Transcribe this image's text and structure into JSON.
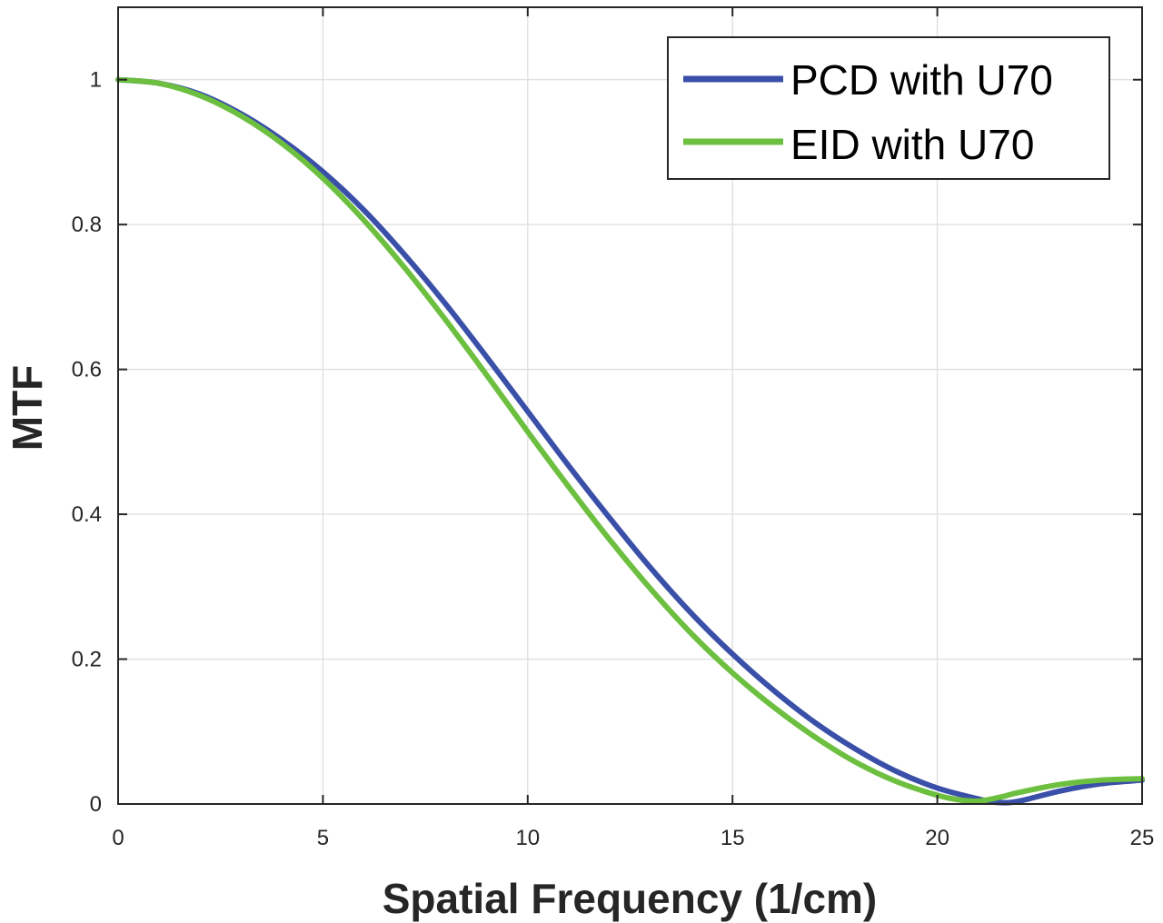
{
  "chart_data": {
    "type": "line",
    "xlabel": "Spatial Frequency (1/cm)",
    "ylabel": "MTF",
    "xlim": [
      0,
      25
    ],
    "ylim": [
      0,
      1.1
    ],
    "xticks": [
      0,
      5,
      10,
      15,
      20,
      25
    ],
    "yticks": [
      0,
      0.2,
      0.4,
      0.6,
      0.8,
      1
    ],
    "xtick_labels": [
      "0",
      "5",
      "10",
      "15",
      "20",
      "25"
    ],
    "ytick_labels": [
      "0",
      "0.2",
      "0.4",
      "0.6",
      "0.8",
      "1"
    ],
    "grid": true,
    "legend_position": "top-right",
    "series": [
      {
        "name": "PCD with U70",
        "color": "#3a4fa8",
        "x": [
          0,
          1,
          2,
          3,
          4,
          5,
          6,
          7,
          8,
          9,
          10,
          11,
          12,
          13,
          14,
          15,
          16,
          17,
          18,
          19,
          20,
          21,
          21.5,
          22,
          23,
          24,
          25
        ],
        "y": [
          1.0,
          0.995,
          0.98,
          0.953,
          0.917,
          0.873,
          0.82,
          0.758,
          0.69,
          0.617,
          0.542,
          0.467,
          0.395,
          0.326,
          0.263,
          0.207,
          0.157,
          0.113,
          0.076,
          0.045,
          0.022,
          0.007,
          0.002,
          0.004,
          0.018,
          0.028,
          0.033
        ]
      },
      {
        "name": "EID with U70",
        "color": "#6cbf3f",
        "x": [
          0,
          1,
          2,
          3,
          4,
          5,
          6,
          7,
          8,
          9,
          10,
          11,
          12,
          13,
          14,
          15,
          16,
          17,
          18,
          19,
          20,
          20.5,
          21,
          21.5,
          22,
          23,
          24,
          25
        ],
        "y": [
          1.0,
          0.995,
          0.978,
          0.95,
          0.912,
          0.864,
          0.806,
          0.74,
          0.668,
          0.592,
          0.514,
          0.438,
          0.365,
          0.297,
          0.235,
          0.181,
          0.134,
          0.093,
          0.058,
          0.031,
          0.012,
          0.006,
          0.004,
          0.009,
          0.016,
          0.027,
          0.033,
          0.035
        ]
      }
    ]
  }
}
